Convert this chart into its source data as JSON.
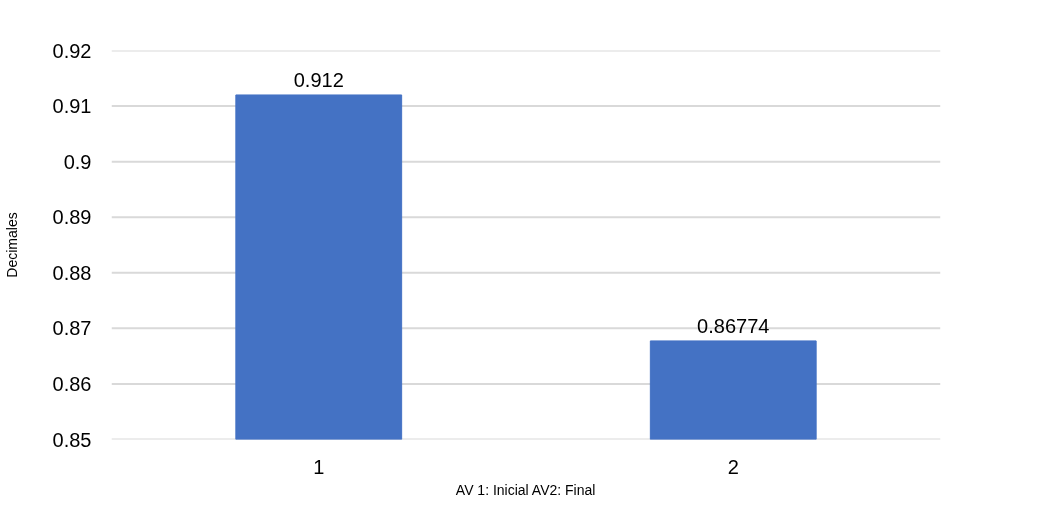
{
  "chart_data": {
    "type": "bar",
    "xlabel": "AV 1: Inicial AV2: Final",
    "ylabel": "Decimales",
    "categories": [
      "1",
      "2"
    ],
    "values": [
      0.912,
      0.86774
    ],
    "color": "#4472c4",
    "ylim": [
      0.85,
      0.92
    ],
    "yticks": [
      0.85,
      0.86,
      0.87,
      0.88,
      0.89,
      0.9,
      0.91,
      0.92
    ],
    "grid": "y",
    "data_labels": true
  }
}
